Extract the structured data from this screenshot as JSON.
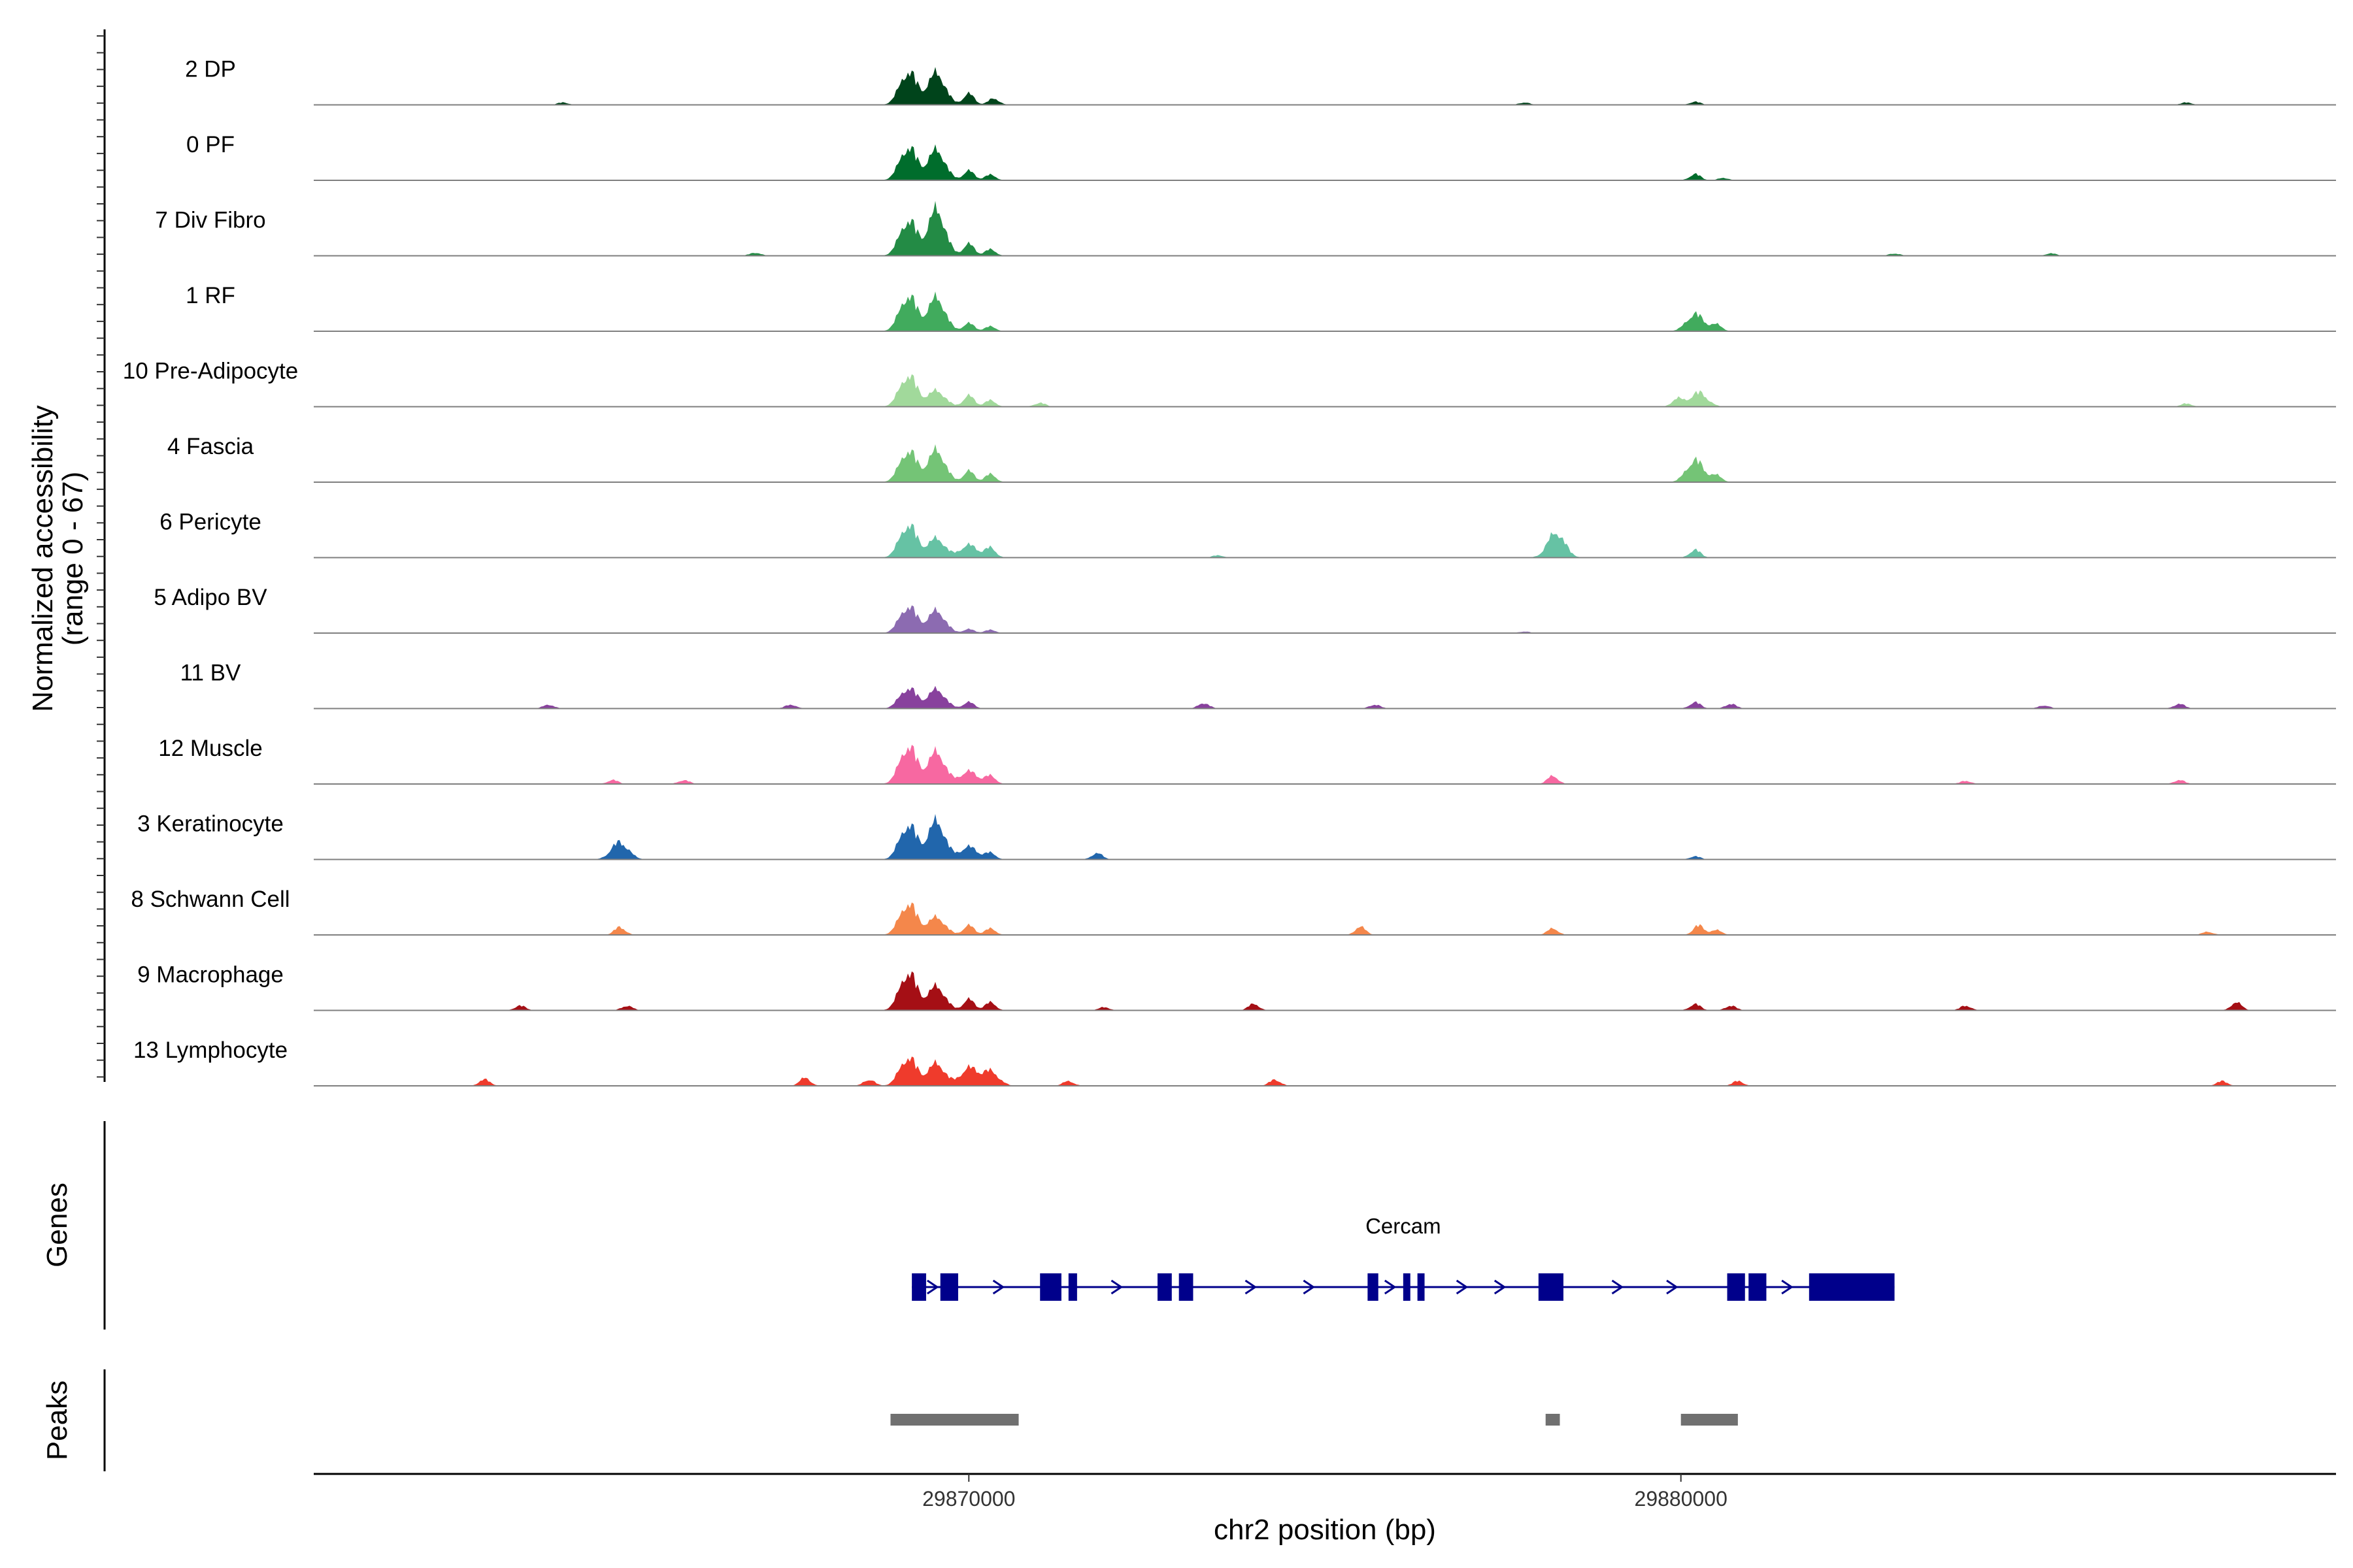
{
  "chart_data": {
    "type": "area",
    "xlabel": "chr2 position (bp)",
    "ylabel_line1": "Normalized accessibility",
    "ylabel_line2": "(range 0 - 67)",
    "ylim": [
      0,
      67
    ],
    "xlim": [
      29860800,
      29889200
    ],
    "xticks": [
      {
        "value": 29870000,
        "label": "29870000"
      },
      {
        "value": 29880000,
        "label": "29880000"
      }
    ],
    "tracks": [
      {
        "name": "2 DP",
        "color": "#00441b",
        "peaks": [
          [
            29869150,
            42
          ],
          [
            29869550,
            40
          ],
          [
            29870000,
            14
          ],
          [
            29870350,
            8
          ],
          [
            29864300,
            3
          ],
          [
            29877800,
            3
          ],
          [
            29880200,
            4
          ],
          [
            29887100,
            3
          ]
        ]
      },
      {
        "name": "0 PF",
        "color": "#006d2c",
        "peaks": [
          [
            29869150,
            42
          ],
          [
            29869550,
            38
          ],
          [
            29870000,
            12
          ],
          [
            29870300,
            7
          ],
          [
            29880200,
            8
          ],
          [
            29880600,
            3
          ]
        ]
      },
      {
        "name": "7 Div Fibro",
        "color": "#238b45",
        "peaks": [
          [
            29869150,
            45
          ],
          [
            29869550,
            58
          ],
          [
            29870000,
            15
          ],
          [
            29870300,
            8
          ],
          [
            29867000,
            4
          ],
          [
            29883000,
            3
          ],
          [
            29885200,
            3
          ]
        ]
      },
      {
        "name": "1 RF",
        "color": "#41ab5d",
        "peaks": [
          [
            29869150,
            45
          ],
          [
            29869550,
            42
          ],
          [
            29870000,
            10
          ],
          [
            29870300,
            6
          ],
          [
            29880200,
            22
          ],
          [
            29880500,
            8
          ]
        ]
      },
      {
        "name": "10 Pre-Adipocyte",
        "color": "#a1d99b",
        "peaks": [
          [
            29869150,
            40
          ],
          [
            29869550,
            20
          ],
          [
            29870000,
            14
          ],
          [
            29870300,
            8
          ],
          [
            29871000,
            5
          ],
          [
            29879950,
            10
          ],
          [
            29880250,
            18
          ],
          [
            29887100,
            4
          ]
        ]
      },
      {
        "name": "4 Fascia",
        "color": "#74c476",
        "peaks": [
          [
            29869150,
            40
          ],
          [
            29869550,
            40
          ],
          [
            29870000,
            14
          ],
          [
            29870300,
            10
          ],
          [
            29880200,
            28
          ],
          [
            29880500,
            8
          ]
        ]
      },
      {
        "name": "6 Pericyte",
        "color": "#66c2a4",
        "peaks": [
          [
            29869150,
            42
          ],
          [
            29869550,
            24
          ],
          [
            29870000,
            16
          ],
          [
            29870300,
            12
          ],
          [
            29878250,
            32
          ],
          [
            29880200,
            10
          ],
          [
            29873500,
            3
          ]
        ]
      },
      {
        "name": "5 Adipo BV",
        "color": "#8c6bb1",
        "peaks": [
          [
            29869150,
            34
          ],
          [
            29869550,
            28
          ],
          [
            29870000,
            5
          ],
          [
            29870300,
            4
          ],
          [
            29877800,
            2
          ]
        ]
      },
      {
        "name": "11 BV",
        "color": "#88419d",
        "peaks": [
          [
            29869150,
            26
          ],
          [
            29869550,
            24
          ],
          [
            29870000,
            8
          ],
          [
            29864100,
            5
          ],
          [
            29867500,
            5
          ],
          [
            29873300,
            7
          ],
          [
            29875700,
            5
          ],
          [
            29880200,
            8
          ],
          [
            29880700,
            6
          ],
          [
            29885100,
            4
          ],
          [
            29887000,
            6
          ]
        ]
      },
      {
        "name": "12 Muscle",
        "color": "#f768a1",
        "peaks": [
          [
            29869150,
            48
          ],
          [
            29869550,
            40
          ],
          [
            29870000,
            16
          ],
          [
            29870300,
            10
          ],
          [
            29865000,
            5
          ],
          [
            29866000,
            5
          ],
          [
            29878200,
            10
          ],
          [
            29884000,
            4
          ],
          [
            29887000,
            5
          ]
        ]
      },
      {
        "name": "3 Keratinocyte",
        "color": "#2166ac",
        "peaks": [
          [
            29869150,
            44
          ],
          [
            29869550,
            48
          ],
          [
            29870000,
            16
          ],
          [
            29870300,
            8
          ],
          [
            29865100,
            22
          ],
          [
            29871800,
            8
          ],
          [
            29880200,
            4
          ]
        ]
      },
      {
        "name": "8 Schwann Cell",
        "color": "#f4874b",
        "peaks": [
          [
            29869150,
            40
          ],
          [
            29869550,
            22
          ],
          [
            29870000,
            12
          ],
          [
            29870300,
            8
          ],
          [
            29865100,
            10
          ],
          [
            29875500,
            10
          ],
          [
            29878200,
            8
          ],
          [
            29880250,
            12
          ],
          [
            29880500,
            6
          ],
          [
            29887400,
            4
          ]
        ]
      },
      {
        "name": "9 Macrophage",
        "color": "#a50f15",
        "peaks": [
          [
            29869150,
            48
          ],
          [
            29869550,
            30
          ],
          [
            29870000,
            14
          ],
          [
            29870300,
            10
          ],
          [
            29863700,
            6
          ],
          [
            29865200,
            6
          ],
          [
            29871900,
            4
          ],
          [
            29874000,
            8
          ],
          [
            29880200,
            8
          ],
          [
            29880700,
            6
          ],
          [
            29884000,
            6
          ],
          [
            29887800,
            10
          ]
        ]
      },
      {
        "name": "13 Lymphocyte",
        "color": "#ef3b2c",
        "peaks": [
          [
            29869150,
            36
          ],
          [
            29869550,
            28
          ],
          [
            29870000,
            22
          ],
          [
            29870300,
            18
          ],
          [
            29863200,
            8
          ],
          [
            29867700,
            10
          ],
          [
            29868600,
            8
          ],
          [
            29871400,
            6
          ],
          [
            29874300,
            8
          ],
          [
            29880800,
            6
          ],
          [
            29887600,
            6
          ]
        ]
      }
    ],
    "genes_label": "Genes",
    "gene": {
      "name": "Cercam",
      "start": 29869200,
      "end": 29883000,
      "strand": "+",
      "exons": [
        [
          29869200,
          29869400
        ],
        [
          29869600,
          29869850
        ],
        [
          29871000,
          29871300
        ],
        [
          29871400,
          29871520
        ],
        [
          29872650,
          29872850
        ],
        [
          29872950,
          29873150
        ],
        [
          29875600,
          29875750
        ],
        [
          29876100,
          29876200
        ],
        [
          29876300,
          29876400
        ],
        [
          29878000,
          29878350
        ],
        [
          29880650,
          29880900
        ],
        [
          29880950,
          29881200
        ],
        [
          29881800,
          29883000
        ]
      ]
    },
    "peaks_label": "Peaks",
    "peak_regions": [
      [
        29868900,
        29870700
      ],
      [
        29878100,
        29878300
      ],
      [
        29880000,
        29880800
      ]
    ]
  }
}
